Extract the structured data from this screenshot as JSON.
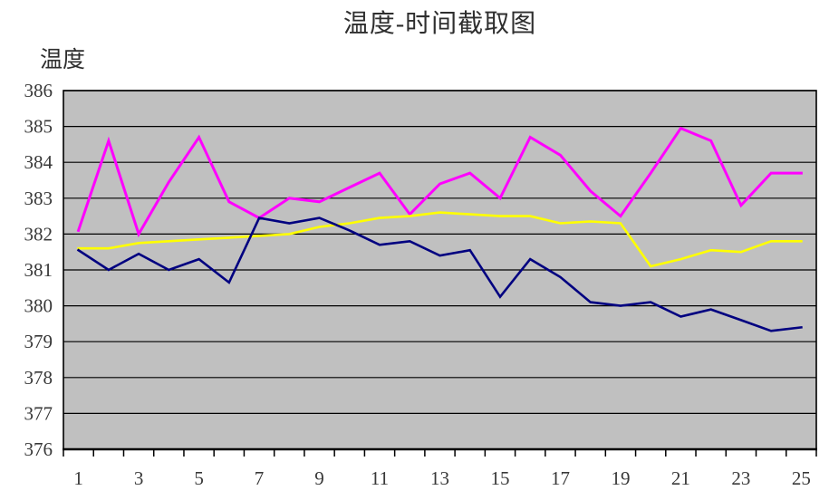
{
  "title": "温度-时间截取图",
  "y_axis_label": "温度",
  "chart_data": {
    "type": "line",
    "categories": [
      1,
      2,
      3,
      4,
      5,
      6,
      7,
      8,
      9,
      10,
      11,
      12,
      13,
      14,
      15,
      16,
      17,
      18,
      19,
      20,
      21,
      22,
      23,
      24,
      25
    ],
    "x_axis_visible_labels": [
      "1",
      "3",
      "5",
      "7",
      "9",
      "11",
      "13",
      "15",
      "17",
      "19",
      "21",
      "23",
      "25"
    ],
    "ylim": [
      376,
      386
    ],
    "y_ticks": [
      376,
      377,
      378,
      379,
      380,
      381,
      382,
      383,
      384,
      385,
      386
    ],
    "grid": true,
    "legend_position": "none",
    "plot_background_color": "#c0c0c0",
    "gridline_color": "#000000",
    "series": [
      {
        "id": "series-1-magenta",
        "color": "#ff00ff",
        "values": [
          382.1,
          384.6,
          382.0,
          383.45,
          384.7,
          382.9,
          382.45,
          383.0,
          382.9,
          383.3,
          383.7,
          382.55,
          383.4,
          383.7,
          383.0,
          384.7,
          384.2,
          383.2,
          382.5,
          383.7,
          384.95,
          384.6,
          382.8,
          383.7,
          383.7
        ]
      },
      {
        "id": "series-2-yellow",
        "color": "#ffff00",
        "values": [
          381.6,
          381.6,
          381.75,
          381.8,
          381.85,
          381.9,
          381.95,
          382.0,
          382.2,
          382.3,
          382.45,
          382.5,
          382.6,
          382.55,
          382.5,
          382.5,
          382.3,
          382.35,
          382.3,
          381.1,
          381.3,
          381.55,
          381.5,
          381.8,
          381.8
        ]
      },
      {
        "id": "series-3-navy",
        "color": "#000080",
        "values": [
          381.55,
          381.0,
          381.45,
          381.0,
          381.3,
          380.65,
          382.45,
          382.3,
          382.45,
          382.1,
          381.7,
          381.8,
          381.4,
          381.55,
          380.25,
          381.3,
          380.8,
          380.1,
          380.0,
          380.1,
          379.7,
          379.9,
          379.6,
          379.3,
          379.4
        ]
      }
    ]
  }
}
